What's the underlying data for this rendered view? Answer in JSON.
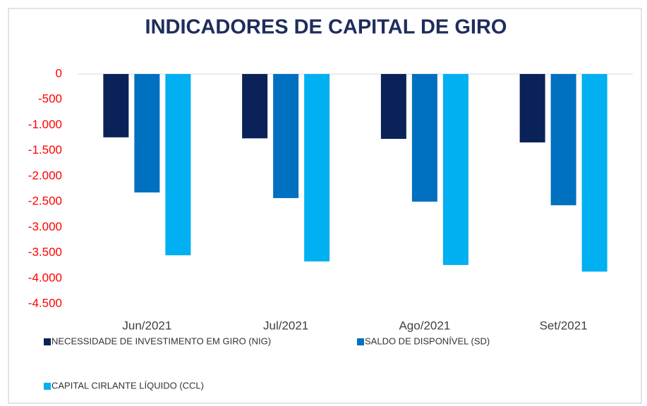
{
  "chart_data": {
    "type": "bar",
    "title": "INDICADORES DE CAPITAL DE GIRO",
    "categories": [
      "Jun/2021",
      "Jul/2021",
      "Ago/2021",
      "Set/2021"
    ],
    "series": [
      {
        "name": "NECESSIDADE DE INVESTIMENTO EM GIRO (NIG)",
        "color": "#0b2259",
        "values": [
          -1240,
          -1260,
          -1270,
          -1340
        ]
      },
      {
        "name": "SALDO DE DISPONÍVEL (SD)",
        "color": "#0070c0",
        "values": [
          -2320,
          -2430,
          -2500,
          -2570
        ]
      },
      {
        "name": "CAPITAL CIRLANTE LÍQUIDO (CCL)",
        "color": "#00b0f0",
        "values": [
          -3550,
          -3670,
          -3740,
          -3870
        ]
      }
    ],
    "ylim": [
      -4500,
      0
    ],
    "yticks": [
      0,
      -500,
      {
        "value": -1000,
        "label": "-1.000"
      },
      {
        "value": -1500,
        "label": "-1.500"
      },
      {
        "value": -2000,
        "label": "-2.000"
      },
      {
        "value": -2500,
        "label": "-2.500"
      },
      {
        "value": -3000,
        "label": "-3.000"
      },
      {
        "value": -3500,
        "label": "-3.500"
      },
      {
        "value": -4000,
        "label": "-4.000"
      },
      {
        "value": -4500,
        "label": "-4.500"
      }
    ],
    "ytick_color": "#ff0000",
    "grid": false
  }
}
